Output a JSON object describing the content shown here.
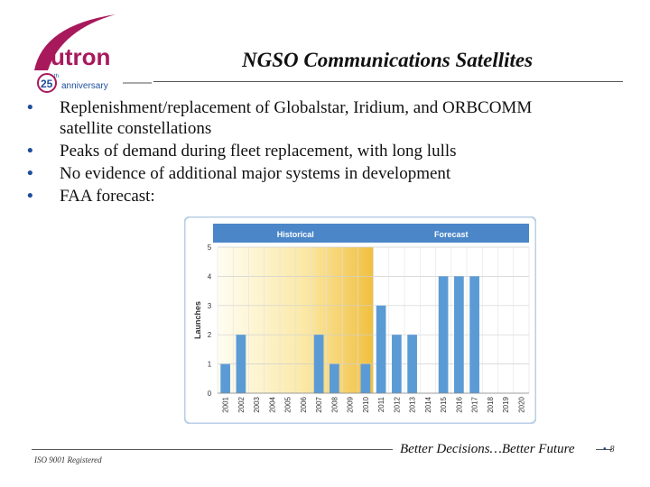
{
  "logo": {
    "wordmark": "utron",
    "badge": "25",
    "badge_suffix": "th",
    "tagline": "anniversary"
  },
  "title": "NGSO Communications Satellites",
  "bullets": [
    "Replenishment/replacement of Globalstar, Iridium, and ORBCOMM satellite constellations",
    "Peaks of demand during fleet replacement, with long lulls",
    "No evidence of additional major systems in development",
    "FAA forecast:"
  ],
  "footer": {
    "iso": "ISO 9001 Registered",
    "tagline": "Better Decisions…Better Future",
    "page": "8"
  },
  "colors": {
    "brand": "#a8195c",
    "bullet": "#1d4e9c",
    "bar": "#5b9bd5",
    "header": "#4a86c8",
    "historical_fill": "#f0c040"
  },
  "chart_data": {
    "type": "bar",
    "header_labels": [
      "Historical",
      "Forecast"
    ],
    "historical_range": [
      "2001",
      "2010"
    ],
    "ylabel": "Launches",
    "xlabel": "",
    "ylim": [
      0,
      5
    ],
    "yticks": [
      "0",
      "1",
      "2",
      "3",
      "4",
      "5"
    ],
    "categories": [
      "2001",
      "2002",
      "2003",
      "2004",
      "2005",
      "2006",
      "2007",
      "2008",
      "2009",
      "2010",
      "2011",
      "2012",
      "2013",
      "2014",
      "2015",
      "2016",
      "2017",
      "2018",
      "2019",
      "2020"
    ],
    "values": [
      1,
      2,
      0,
      0,
      0,
      0,
      2,
      1,
      0,
      1,
      3,
      2,
      2,
      0,
      4,
      4,
      4,
      0,
      0,
      0
    ],
    "grid": true
  }
}
